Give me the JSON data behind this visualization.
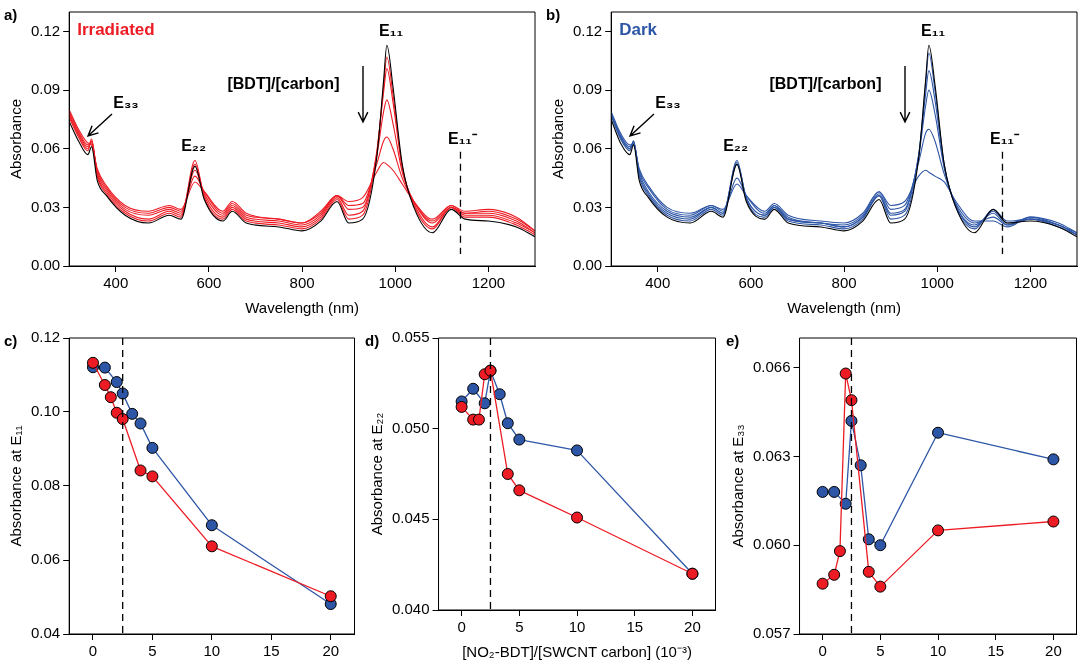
{
  "chart_data": [
    {
      "type": "line",
      "title": "a)",
      "xlabel": "Wavelength (nm)",
      "ylabel": "Absorbance",
      "xlim": [
        300,
        1300
      ],
      "xticks": [
        400,
        600,
        800,
        1000,
        1200
      ],
      "ylim": [
        0,
        0.13
      ],
      "yticks": [
        {
          "value": 0,
          "label": "0.00"
        },
        {
          "value": 0.03,
          "label": "0.03"
        },
        {
          "value": 0.06,
          "label": "0.06"
        },
        {
          "value": 0.09,
          "label": "0.09"
        },
        {
          "value": 0.12,
          "label": "0.12"
        }
      ],
      "x": [
        300,
        320,
        340,
        348,
        360,
        380,
        420,
        470,
        515,
        540,
        570,
        590,
        630,
        650,
        680,
        750,
        800,
        840,
        875,
        900,
        930,
        960,
        975,
        982,
        995,
        1015,
        1040,
        1080,
        1120,
        1150,
        1200,
        1260,
        1300
      ],
      "series": [
        {
          "color": "#000000",
          "values": [
            0.074,
            0.064,
            0.057,
            0.061,
            0.044,
            0.036,
            0.026,
            0.022,
            0.026,
            0.024,
            0.051,
            0.034,
            0.023,
            0.028,
            0.022,
            0.02,
            0.018,
            0.023,
            0.033,
            0.022,
            0.024,
            0.055,
            0.095,
            0.113,
            0.092,
            0.052,
            0.03,
            0.017,
            0.029,
            0.024,
            0.023,
            0.02,
            0.015
          ]
        },
        {
          "color": "#ed1c24",
          "values": [
            0.076,
            0.066,
            0.059,
            0.064,
            0.046,
            0.037,
            0.027,
            0.023,
            0.027,
            0.025,
            0.054,
            0.035,
            0.024,
            0.029,
            0.023,
            0.021,
            0.019,
            0.024,
            0.034,
            0.024,
            0.026,
            0.057,
            0.092,
            0.107,
            0.088,
            0.051,
            0.031,
            0.019,
            0.03,
            0.025,
            0.025,
            0.021,
            0.016
          ]
        },
        {
          "color": "#ed1c24",
          "values": [
            0.077,
            0.067,
            0.06,
            0.065,
            0.047,
            0.038,
            0.028,
            0.024,
            0.028,
            0.026,
            0.052,
            0.036,
            0.025,
            0.03,
            0.024,
            0.022,
            0.02,
            0.025,
            0.035,
            0.026,
            0.028,
            0.058,
            0.089,
            0.101,
            0.084,
            0.05,
            0.032,
            0.02,
            0.03,
            0.026,
            0.026,
            0.022,
            0.017
          ]
        },
        {
          "color": "#ed1c24",
          "values": [
            0.078,
            0.068,
            0.061,
            0.064,
            0.048,
            0.039,
            0.029,
            0.026,
            0.029,
            0.027,
            0.049,
            0.037,
            0.026,
            0.031,
            0.025,
            0.023,
            0.021,
            0.026,
            0.036,
            0.029,
            0.03,
            0.056,
            0.079,
            0.085,
            0.073,
            0.048,
            0.033,
            0.022,
            0.03,
            0.027,
            0.027,
            0.023,
            0.017
          ]
        },
        {
          "color": "#ed1c24",
          "values": [
            0.079,
            0.069,
            0.062,
            0.063,
            0.049,
            0.04,
            0.03,
            0.027,
            0.03,
            0.028,
            0.046,
            0.038,
            0.027,
            0.032,
            0.026,
            0.024,
            0.022,
            0.027,
            0.036,
            0.031,
            0.032,
            0.052,
            0.064,
            0.066,
            0.06,
            0.045,
            0.033,
            0.023,
            0.031,
            0.027,
            0.028,
            0.024,
            0.018
          ]
        },
        {
          "color": "#ed1c24",
          "values": [
            0.08,
            0.07,
            0.063,
            0.062,
            0.05,
            0.041,
            0.031,
            0.028,
            0.031,
            0.029,
            0.043,
            0.038,
            0.028,
            0.033,
            0.027,
            0.024,
            0.022,
            0.028,
            0.036,
            0.033,
            0.035,
            0.048,
            0.053,
            0.052,
            0.049,
            0.042,
            0.033,
            0.024,
            0.031,
            0.028,
            0.029,
            0.025,
            0.018
          ]
        }
      ],
      "annotations": [
        "Irradiated",
        "E₃₃",
        "E₂₂",
        "E₁₁",
        "[BDT]/[carbon]"
      ],
      "ref_lines": [
        {
          "axis": "x",
          "value": 1140,
          "label": "E₁₁⁻",
          "line_style": "dashed"
        }
      ]
    },
    {
      "type": "line",
      "title": "b)",
      "xlabel": "Wavelength (nm)",
      "ylabel": "Absorbance",
      "xlim": [
        300,
        1300
      ],
      "xticks": [
        400,
        600,
        800,
        1000,
        1200
      ],
      "ylim": [
        0,
        0.13
      ],
      "yticks": [
        {
          "value": 0,
          "label": "0.00"
        },
        {
          "value": 0.03,
          "label": "0.03"
        },
        {
          "value": 0.06,
          "label": "0.06"
        },
        {
          "value": 0.09,
          "label": "0.09"
        },
        {
          "value": 0.12,
          "label": "0.12"
        }
      ],
      "x": [
        300,
        320,
        340,
        348,
        360,
        380,
        420,
        470,
        515,
        540,
        570,
        590,
        630,
        650,
        680,
        750,
        800,
        840,
        875,
        900,
        930,
        960,
        975,
        982,
        995,
        1015,
        1040,
        1080,
        1120,
        1150,
        1200,
        1260,
        1300
      ],
      "series": [
        {
          "color": "#000000",
          "values": [
            0.075,
            0.063,
            0.057,
            0.062,
            0.044,
            0.035,
            0.025,
            0.022,
            0.028,
            0.025,
            0.052,
            0.033,
            0.024,
            0.029,
            0.022,
            0.02,
            0.018,
            0.023,
            0.034,
            0.022,
            0.024,
            0.055,
            0.095,
            0.113,
            0.093,
            0.052,
            0.03,
            0.017,
            0.029,
            0.022,
            0.023,
            0.02,
            0.015
          ]
        },
        {
          "color": "#2e56a6",
          "values": [
            0.077,
            0.065,
            0.059,
            0.064,
            0.046,
            0.036,
            0.026,
            0.023,
            0.029,
            0.026,
            0.054,
            0.034,
            0.025,
            0.03,
            0.023,
            0.021,
            0.019,
            0.024,
            0.036,
            0.024,
            0.026,
            0.056,
            0.093,
            0.109,
            0.09,
            0.052,
            0.03,
            0.019,
            0.029,
            0.023,
            0.024,
            0.02,
            0.016
          ]
        },
        {
          "color": "#2e56a6",
          "values": [
            0.077,
            0.066,
            0.06,
            0.064,
            0.047,
            0.037,
            0.027,
            0.024,
            0.03,
            0.027,
            0.053,
            0.035,
            0.026,
            0.03,
            0.024,
            0.022,
            0.02,
            0.025,
            0.036,
            0.026,
            0.028,
            0.057,
            0.088,
            0.1,
            0.085,
            0.051,
            0.031,
            0.02,
            0.028,
            0.022,
            0.024,
            0.021,
            0.016
          ]
        },
        {
          "color": "#2e56a6",
          "values": [
            0.078,
            0.066,
            0.06,
            0.063,
            0.048,
            0.038,
            0.028,
            0.025,
            0.03,
            0.027,
            0.052,
            0.035,
            0.026,
            0.031,
            0.024,
            0.022,
            0.02,
            0.025,
            0.037,
            0.027,
            0.029,
            0.056,
            0.082,
            0.09,
            0.078,
            0.05,
            0.031,
            0.021,
            0.027,
            0.021,
            0.024,
            0.021,
            0.016
          ]
        },
        {
          "color": "#2e56a6",
          "values": [
            0.078,
            0.067,
            0.061,
            0.063,
            0.049,
            0.04,
            0.029,
            0.026,
            0.031,
            0.028,
            0.045,
            0.036,
            0.027,
            0.031,
            0.025,
            0.022,
            0.021,
            0.026,
            0.038,
            0.029,
            0.031,
            0.053,
            0.068,
            0.07,
            0.064,
            0.047,
            0.032,
            0.022,
            0.025,
            0.021,
            0.025,
            0.021,
            0.017
          ]
        },
        {
          "color": "#2e56a6",
          "values": [
            0.079,
            0.068,
            0.062,
            0.062,
            0.05,
            0.041,
            0.03,
            0.027,
            0.031,
            0.029,
            0.042,
            0.036,
            0.028,
            0.032,
            0.026,
            0.023,
            0.022,
            0.027,
            0.038,
            0.031,
            0.033,
            0.046,
            0.049,
            0.048,
            0.046,
            0.043,
            0.033,
            0.023,
            0.023,
            0.02,
            0.025,
            0.022,
            0.017
          ]
        }
      ],
      "annotations": [
        "Dark",
        "E₃₃",
        "E₂₂",
        "E₁₁",
        "[BDT]/[carbon]"
      ],
      "ref_lines": [
        {
          "axis": "x",
          "value": 1140,
          "label": "E₁₁⁻",
          "line_style": "dashed"
        }
      ]
    },
    {
      "type": "line",
      "title": "c)",
      "ylabel": "Absorbance at E₁₁",
      "marker": "circle",
      "xlim": [
        -2,
        22
      ],
      "xticks": [
        0,
        5,
        10,
        15,
        20
      ],
      "ylim": [
        0.04,
        0.12
      ],
      "yticks": [
        {
          "value": 0.04,
          "label": "0.04"
        },
        {
          "value": 0.06,
          "label": "0.06"
        },
        {
          "value": 0.08,
          "label": "0.08"
        },
        {
          "value": 0.1,
          "label": "0.10"
        },
        {
          "value": 0.12,
          "label": "0.12"
        }
      ],
      "series": [
        {
          "color": "#ed1c24",
          "x": [
            0,
            1,
            1.5,
            2,
            2.5,
            4,
            5,
            10,
            20
          ],
          "values": [
            0.1133,
            0.1073,
            0.104,
            0.0998,
            0.0981,
            0.0842,
            0.0826,
            0.0637,
            0.0502
          ]
        },
        {
          "color": "#2e56a6",
          "x": [
            0,
            1,
            2,
            2.5,
            3.3,
            4,
            5,
            10,
            20
          ],
          "values": [
            0.1121,
            0.112,
            0.1081,
            0.105,
            0.0995,
            0.0969,
            0.0903,
            0.0694,
            0.0481
          ]
        }
      ],
      "ref_lines": [
        {
          "axis": "x",
          "value": 2.5,
          "line_style": "dashed"
        }
      ]
    },
    {
      "type": "line",
      "title": "d)",
      "xlabel": "[NO₂-BDT]/[SWCNT carbon] (10⁻³)",
      "ylabel": "Absorbance at E₂₂",
      "marker": "circle",
      "xlim": [
        -2,
        22
      ],
      "xticks": [
        0,
        5,
        10,
        15,
        20
      ],
      "ylim": [
        0.04,
        0.055
      ],
      "yticks": [
        {
          "value": 0.04,
          "label": "0.040"
        },
        {
          "value": 0.045,
          "label": "0.045"
        },
        {
          "value": 0.05,
          "label": "0.050"
        },
        {
          "value": 0.055,
          "label": "0.055"
        }
      ],
      "series": [
        {
          "color": "#ed1c24",
          "x": [
            0,
            1,
            1.5,
            2,
            2.5,
            4,
            5,
            10,
            20
          ],
          "values": [
            0.0512,
            0.0505,
            0.0505,
            0.053,
            0.0532,
            0.0475,
            0.0466,
            0.0451,
            0.042
          ]
        },
        {
          "color": "#2e56a6",
          "x": [
            0,
            1,
            2,
            2.5,
            3.3,
            4,
            5,
            10,
            20
          ],
          "values": [
            0.0515,
            0.0522,
            0.0514,
            0.0532,
            0.0519,
            0.0503,
            0.0494,
            0.0488,
            0.042
          ]
        }
      ],
      "ref_lines": [
        {
          "axis": "x",
          "value": 2.5,
          "line_style": "dashed"
        }
      ]
    },
    {
      "type": "line",
      "title": "e)",
      "ylabel": "Absorbance at E₃₃",
      "marker": "circle",
      "xlim": [
        -2,
        22
      ],
      "xticks": [
        0,
        5,
        10,
        15,
        20
      ],
      "ylim": [
        0.057,
        0.067
      ],
      "yticks": [
        {
          "value": 0.057,
          "label": "0.057"
        },
        {
          "value": 0.06,
          "label": "0.060"
        },
        {
          "value": 0.063,
          "label": "0.063"
        },
        {
          "value": 0.066,
          "label": "0.066"
        }
      ],
      "series": [
        {
          "color": "#ed1c24",
          "x": [
            0,
            1,
            1.5,
            2,
            2.5,
            4,
            5,
            10,
            20
          ],
          "values": [
            0.0587,
            0.059,
            0.0598,
            0.0658,
            0.0649,
            0.0591,
            0.0586,
            0.0605,
            0.0608
          ]
        },
        {
          "color": "#2e56a6",
          "x": [
            0,
            1,
            2,
            2.5,
            3.3,
            4,
            5,
            10,
            20
          ],
          "values": [
            0.0618,
            0.0618,
            0.0614,
            0.0642,
            0.0627,
            0.0602,
            0.06,
            0.0638,
            0.0629
          ]
        }
      ],
      "ref_lines": [
        {
          "axis": "x",
          "value": 2.5,
          "line_style": "dashed"
        }
      ]
    }
  ]
}
